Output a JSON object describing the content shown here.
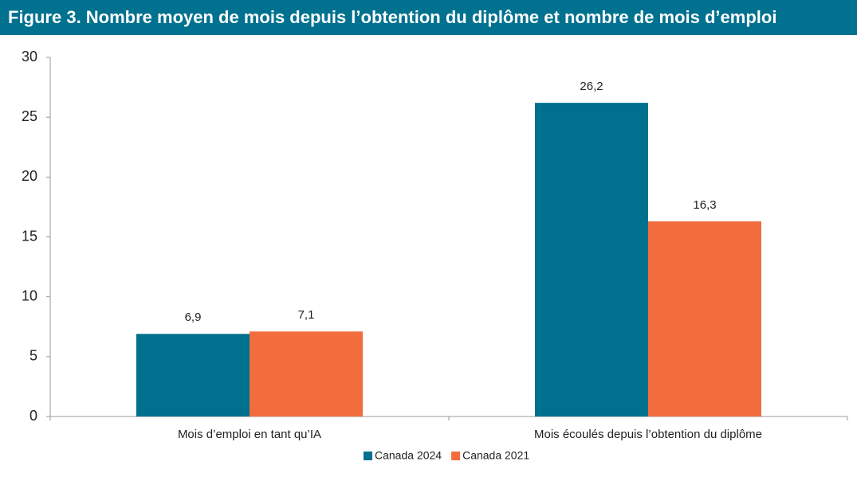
{
  "chart_data": {
    "type": "bar",
    "title": "Figure 3. Nombre moyen de mois depuis l’obtention du diplôme et nombre de mois d’emploi",
    "categories": [
      "Mois d’emploi en tant qu’IA",
      "Mois écoulés depuis l’obtention du diplôme"
    ],
    "series": [
      {
        "name": "Canada 2024",
        "color": "#00708f",
        "values": [
          6.9,
          26.2
        ],
        "value_labels": [
          "6,9",
          "26,2"
        ]
      },
      {
        "name": "Canada 2021",
        "color": "#f26d3d",
        "values": [
          7.1,
          16.3
        ],
        "value_labels": [
          "7,1",
          "16,3"
        ]
      }
    ],
    "ylim": [
      0,
      30
    ],
    "yticks": [
      0,
      5,
      10,
      15,
      20,
      25,
      30
    ],
    "grid": false,
    "legend": "bottom"
  }
}
